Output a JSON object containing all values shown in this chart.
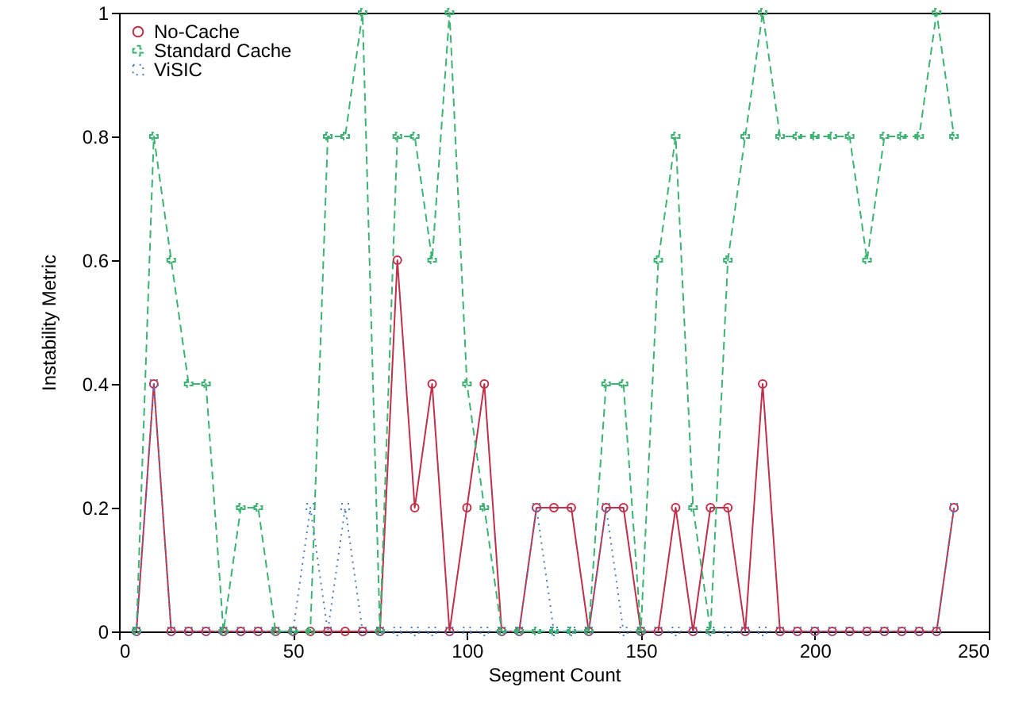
{
  "chart_data": {
    "type": "line",
    "xlabel": "Segment Count",
    "ylabel": "Instability Metric",
    "x": [
      5,
      10,
      15,
      20,
      25,
      30,
      35,
      40,
      45,
      50,
      55,
      60,
      65,
      70,
      75,
      80,
      85,
      90,
      95,
      100,
      105,
      110,
      115,
      120,
      125,
      130,
      135,
      140,
      145,
      150,
      155,
      160,
      165,
      170,
      175,
      180,
      185,
      190,
      195,
      200,
      205,
      210,
      215,
      220,
      225,
      230,
      235,
      240
    ],
    "series": [
      {
        "name": "No-Cache",
        "color": "#c0304a",
        "marker": "circle",
        "line_style": "solid",
        "values": [
          0,
          0.4,
          0,
          0,
          0,
          0,
          0,
          0,
          0,
          0,
          0,
          0,
          0,
          0,
          0,
          0.6,
          0.2,
          0.4,
          0,
          0.2,
          0.4,
          0,
          0,
          0.2,
          0.2,
          0.2,
          0,
          0.2,
          0.2,
          0,
          0,
          0.2,
          0,
          0.2,
          0.2,
          0,
          0.4,
          0,
          0,
          0,
          0,
          0,
          0,
          0,
          0,
          0,
          0,
          0.2
        ]
      },
      {
        "name": "Standard Cache",
        "color": "#3cb371",
        "marker": "cross",
        "line_style": "dashed",
        "values": [
          0,
          0.8,
          0.6,
          0.4,
          0.4,
          0,
          0.2,
          0.2,
          0,
          0,
          0,
          0.8,
          0.8,
          1,
          0,
          0.8,
          0.8,
          0.6,
          1,
          0.4,
          0.2,
          0,
          0,
          0,
          0,
          0,
          0,
          0.4,
          0.4,
          0,
          0.6,
          0.8,
          0.2,
          0,
          0.6,
          0.8,
          1,
          0.8,
          0.8,
          0.8,
          0.8,
          0.8,
          0.6,
          0.8,
          0.8,
          0.8,
          1,
          0.8
        ]
      },
      {
        "name": "ViSIC",
        "color": "#4a7ec0",
        "marker": "square",
        "line_style": "dotted",
        "values": [
          0,
          0.4,
          0,
          0,
          0,
          0,
          0,
          0,
          0,
          0,
          0.2,
          0,
          0.2,
          0,
          0,
          0,
          0,
          0,
          0,
          0,
          0,
          0,
          0,
          0.2,
          0,
          0,
          0,
          0.2,
          0,
          0,
          0,
          0,
          0,
          0,
          0,
          0,
          0,
          0,
          0,
          0,
          0,
          0,
          0,
          0,
          0,
          0,
          0,
          0.2
        ]
      }
    ],
    "xlim": [
      0,
      250
    ],
    "xticks": [
      0,
      50,
      100,
      150,
      200,
      250
    ],
    "ylim": [
      0,
      1
    ],
    "yticks": [
      0,
      0.2,
      0.4,
      0.6,
      0.8,
      1
    ],
    "legend": "top left",
    "grid": false
  }
}
